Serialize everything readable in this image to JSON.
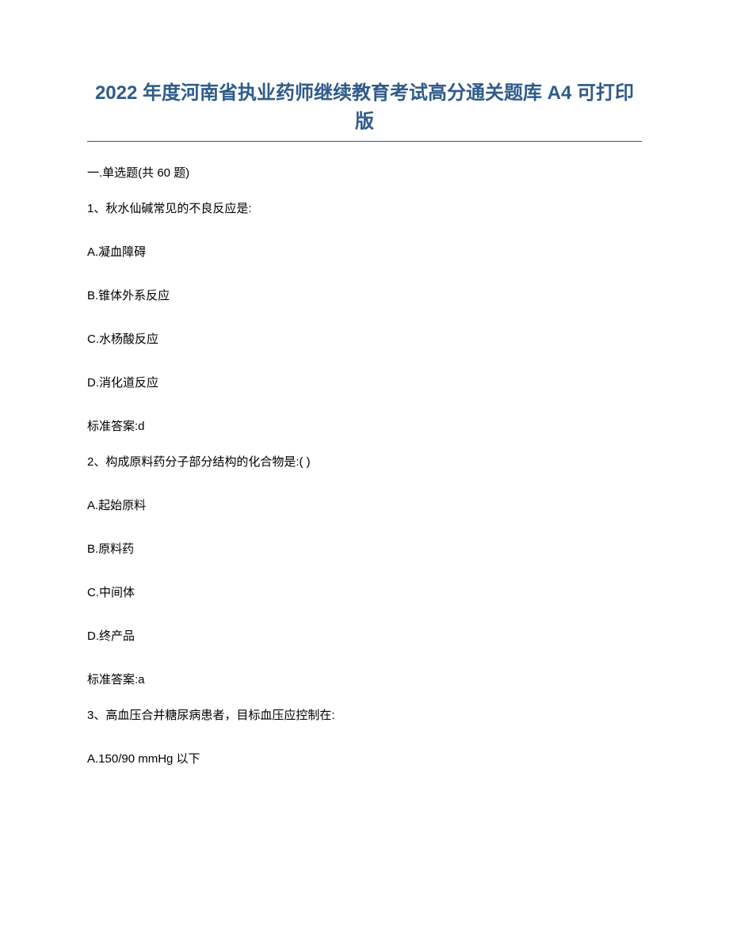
{
  "title": "2022 年度河南省执业药师继续教育考试高分通关题库 A4 可打印版",
  "section_header": "一.单选题(共 60 题)",
  "questions": [
    {
      "stem": "1、秋水仙碱常见的不良反应是:",
      "options": [
        "A.凝血障碍",
        "B.锥体外系反应",
        "C.水杨酸反应",
        "D.消化道反应"
      ],
      "answer": "标准答案:d"
    },
    {
      "stem": "2、构成原料药分子部分结构的化合物是:( )",
      "options": [
        "A.起始原料",
        "B.原料药",
        "C.中间体",
        "D.终产品"
      ],
      "answer": "标准答案:a"
    },
    {
      "stem": "3、高血压合并糖尿病患者，目标血压应控制在:",
      "options": [
        "A.150/90 mmHg 以下"
      ],
      "answer": null
    }
  ],
  "colors": {
    "title_color": "#2e5b8a",
    "text_color": "#000000",
    "background": "#ffffff"
  },
  "typography": {
    "title_fontsize": 24,
    "body_fontsize": 15,
    "title_weight": "bold"
  }
}
